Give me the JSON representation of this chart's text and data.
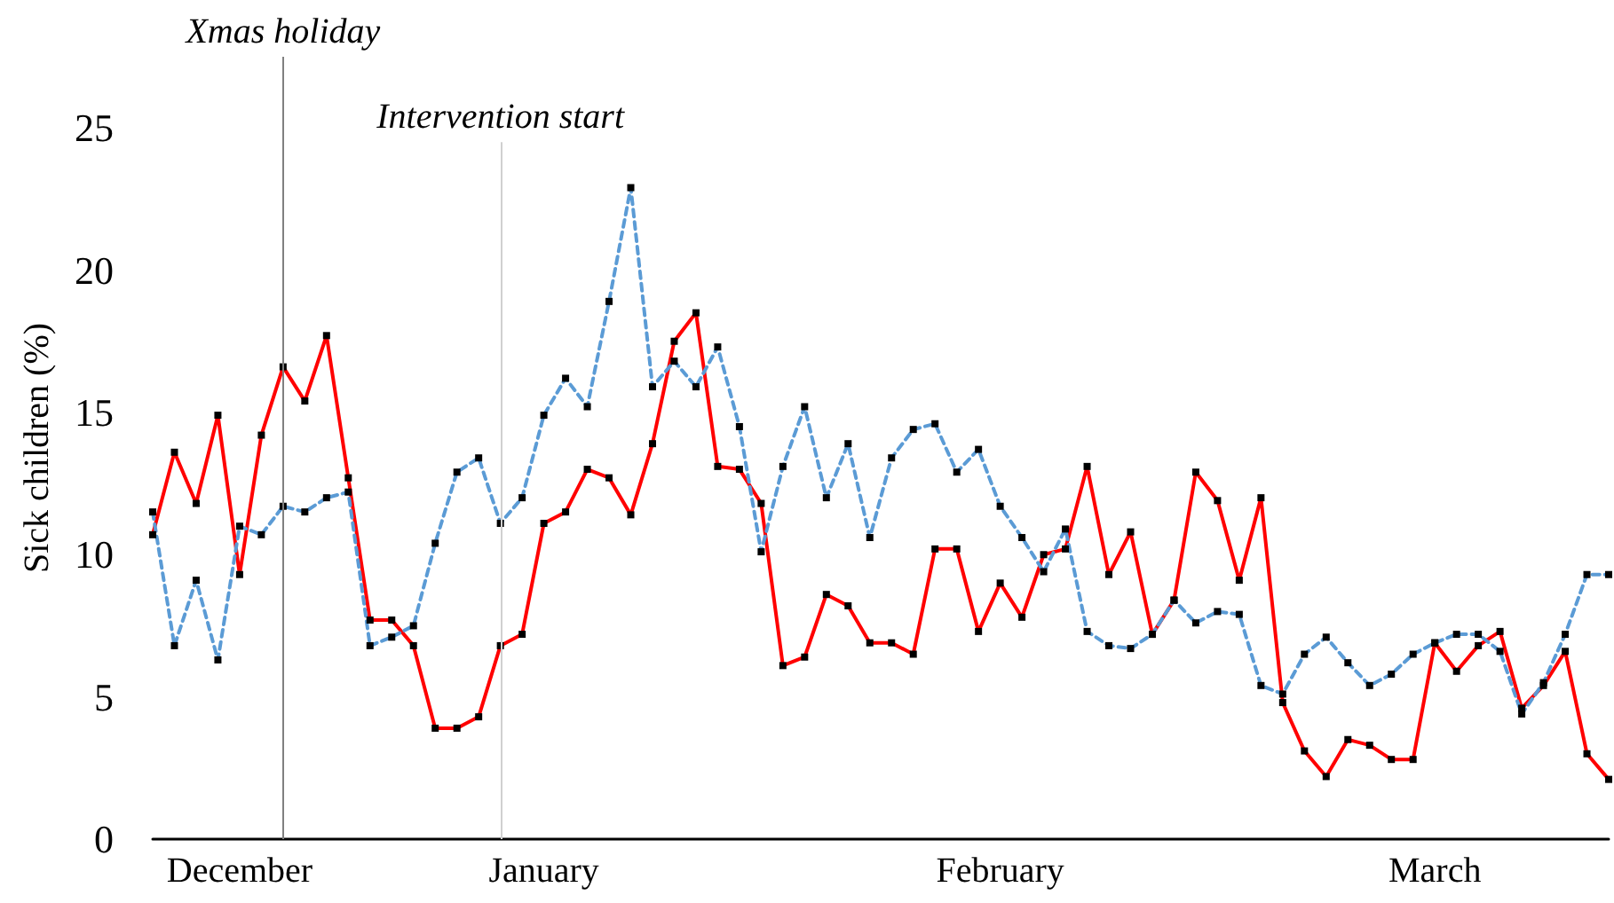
{
  "chart_data": {
    "type": "line",
    "ylabel": "Sick children (%)",
    "categories": [
      null,
      null,
      null,
      null,
      "December",
      null,
      null,
      null,
      null,
      null,
      null,
      null,
      null,
      null,
      null,
      null,
      null,
      null,
      "January",
      null,
      null,
      null,
      null,
      null,
      null,
      null,
      null,
      null,
      null,
      null,
      null,
      null,
      null,
      null,
      null,
      null,
      null,
      null,
      null,
      "February",
      null,
      null,
      null,
      null,
      null,
      null,
      null,
      null,
      null,
      null,
      null,
      null,
      null,
      null,
      null,
      null,
      null,
      null,
      null,
      "March",
      null,
      null,
      null,
      null,
      null,
      null,
      null,
      null
    ],
    "ylim": [
      0,
      27.5
    ],
    "yticks": [
      0,
      5,
      10,
      15,
      20,
      25
    ],
    "grid": false,
    "marker": "square",
    "series": [
      {
        "color": "#ff0000",
        "line_style": "solid",
        "values": [
          10.7,
          13.6,
          11.8,
          14.9,
          9.3,
          14.2,
          16.6,
          15.4,
          17.7,
          12.7,
          7.7,
          7.7,
          6.8,
          3.9,
          3.9,
          4.3,
          6.8,
          7.2,
          11.1,
          11.5,
          13.0,
          12.7,
          11.4,
          13.9,
          17.5,
          18.5,
          13.1,
          13.0,
          11.8,
          6.1,
          6.4,
          8.6,
          8.2,
          6.9,
          6.9,
          6.5,
          10.2,
          10.2,
          7.3,
          9.0,
          7.8,
          10.0,
          10.2,
          13.1,
          9.3,
          10.8,
          7.2,
          8.4,
          12.9,
          11.9,
          9.1,
          12.0,
          4.8,
          3.1,
          2.2,
          3.5,
          3.3,
          2.8,
          2.8,
          6.9,
          5.9,
          6.8,
          7.3,
          4.6,
          5.4,
          6.6,
          3.0,
          2.1
        ]
      },
      {
        "color": "#5b9bd5",
        "line_style": "dashed",
        "values": [
          11.5,
          6.8,
          9.1,
          6.3,
          11.0,
          10.7,
          11.7,
          11.5,
          12.0,
          12.2,
          6.8,
          7.1,
          7.5,
          10.4,
          12.9,
          13.4,
          11.1,
          12.0,
          14.9,
          16.2,
          15.2,
          18.9,
          22.9,
          15.9,
          16.8,
          15.9,
          17.3,
          14.5,
          10.1,
          13.1,
          15.2,
          12.0,
          13.9,
          10.6,
          13.4,
          14.4,
          14.6,
          12.9,
          13.7,
          11.7,
          10.6,
          9.4,
          10.9,
          7.3,
          6.8,
          6.7,
          7.2,
          8.4,
          7.6,
          8.0,
          7.9,
          5.4,
          5.1,
          6.5,
          7.1,
          6.2,
          5.4,
          5.8,
          6.5,
          6.9,
          7.2,
          7.2,
          6.6,
          4.4,
          5.5,
          7.2,
          9.3,
          9.3
        ]
      }
    ],
    "annotations": [
      "Xmas holiday",
      "Intervention start"
    ]
  }
}
